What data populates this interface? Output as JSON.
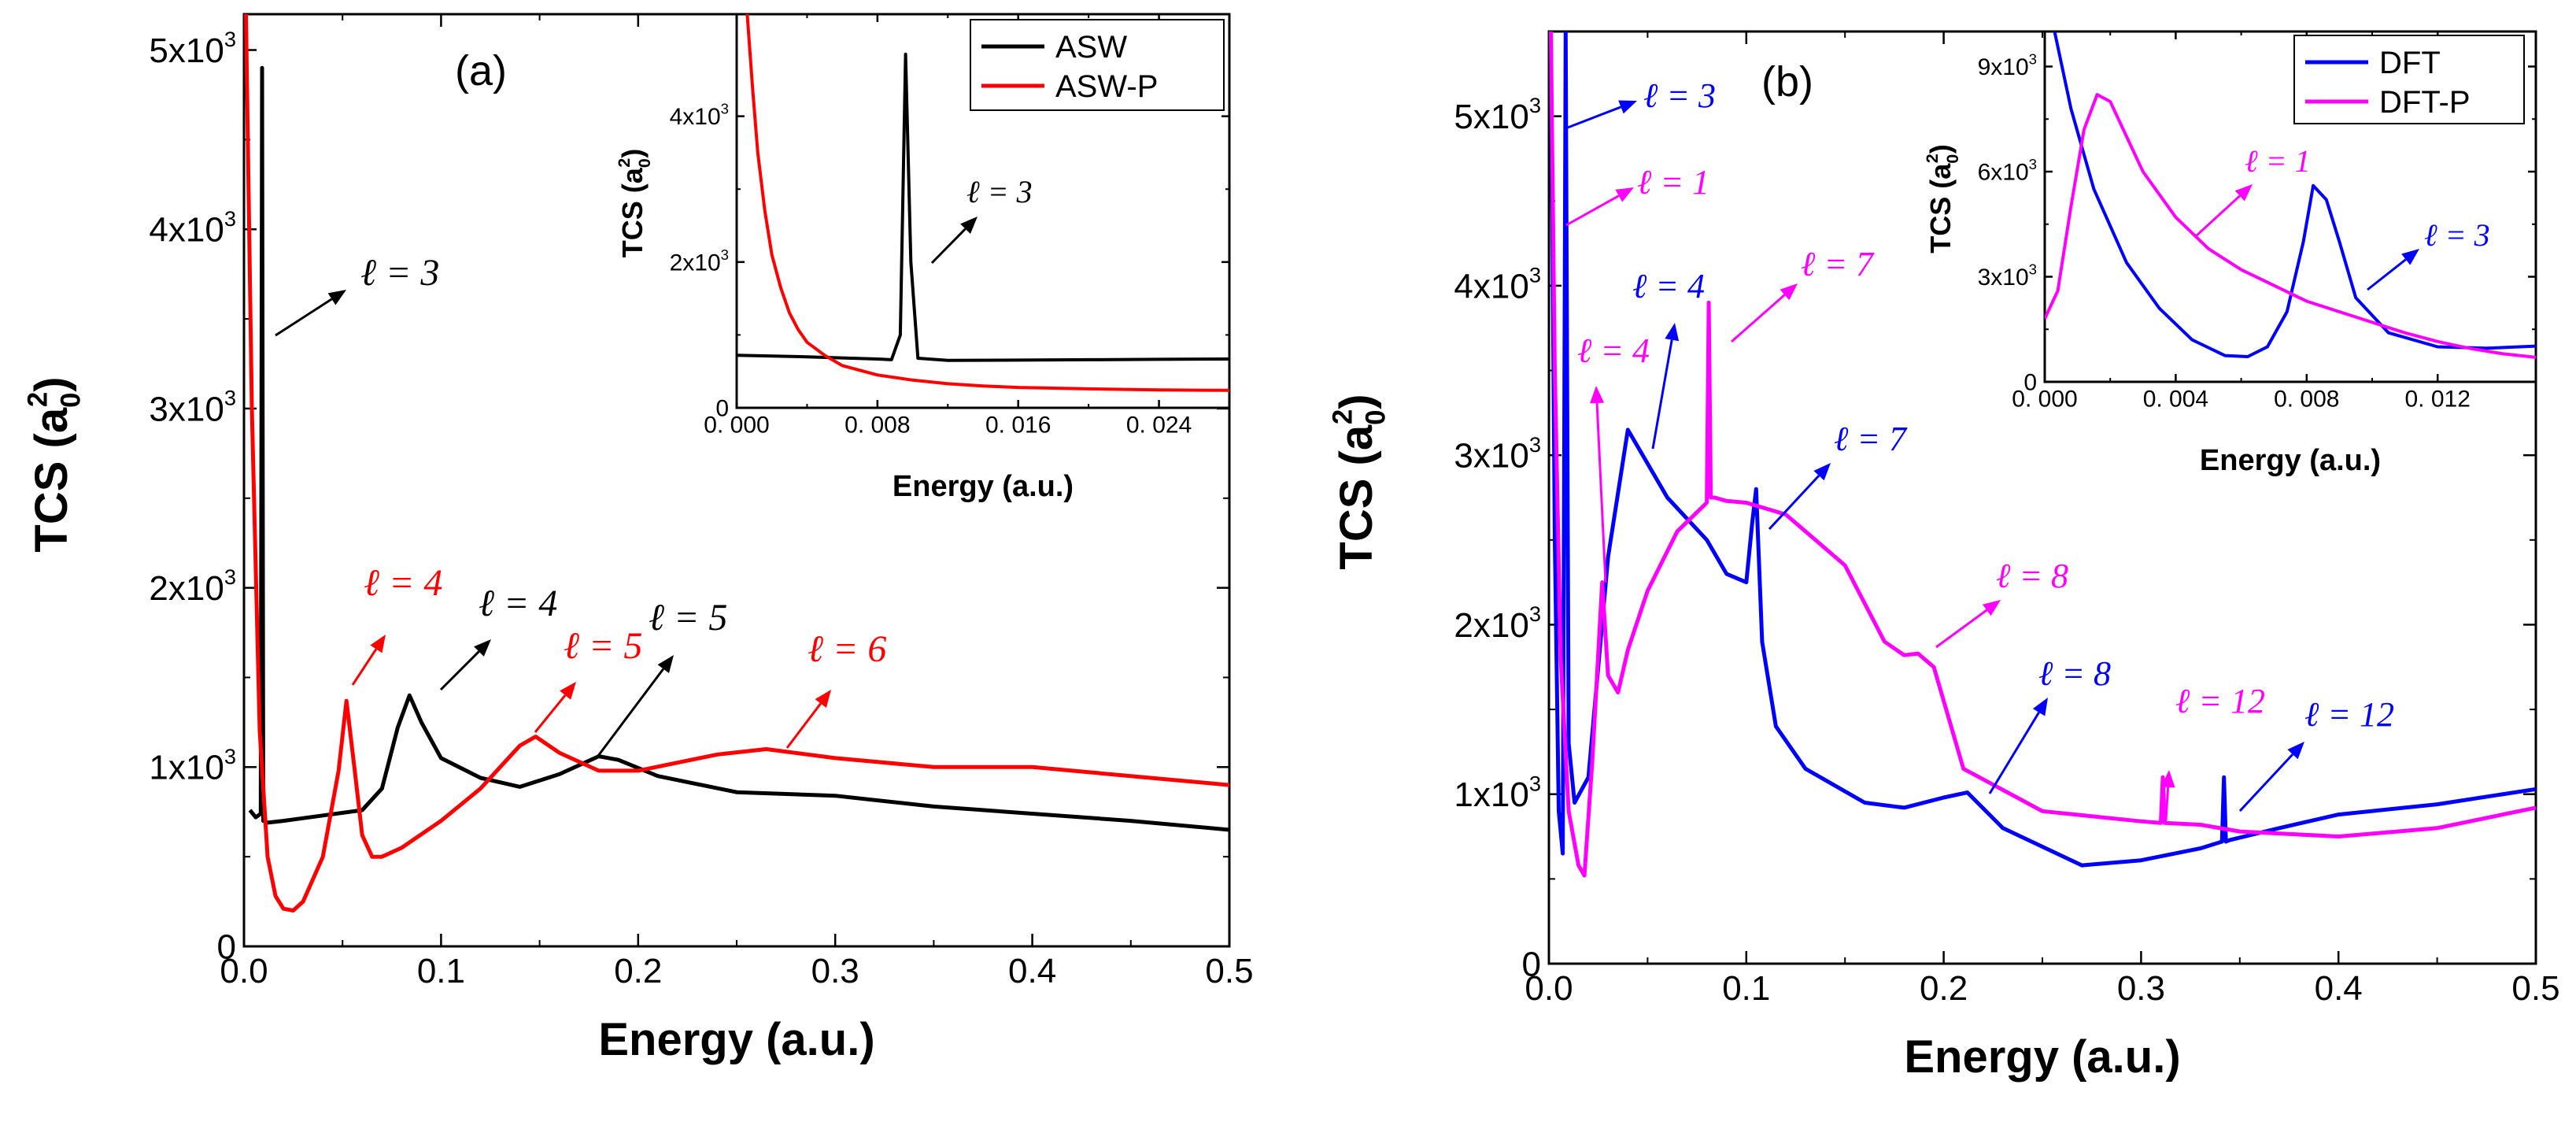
{
  "chart_data": [
    {
      "panel": "(a)",
      "type": "line",
      "xlabel": "Energy (a.u.)",
      "ylabel": "TCS (a",
      "ylabel_sub": "0",
      "ylabel_sup": "2",
      "ylabel_tail": ")",
      "xlim": [
        0,
        0.5
      ],
      "ylim": [
        0,
        5200
      ],
      "xticks": [
        0,
        0.1,
        0.2,
        0.3,
        0.4,
        0.5
      ],
      "xtick_labels": [
        "0.0",
        "0.1",
        "0.2",
        "0.3",
        "0.4",
        "0.5"
      ],
      "yticks": [
        0,
        1000,
        2000,
        3000,
        4000,
        5000
      ],
      "ytick_labels": [
        {
          "base": "0",
          "exp": ""
        },
        {
          "base": "1x10",
          "exp": "3"
        },
        {
          "base": "2x10",
          "exp": "3"
        },
        {
          "base": "3x10",
          "exp": "3"
        },
        {
          "base": "4x10",
          "exp": "3"
        },
        {
          "base": "5x10",
          "exp": "3"
        }
      ],
      "series": [
        {
          "name": "ASW",
          "color": "#000000",
          "x": [
            0.003,
            0.006,
            0.0085,
            0.0092,
            0.0098,
            0.012,
            0.02,
            0.04,
            0.06,
            0.07,
            0.078,
            0.084,
            0.09,
            0.1,
            0.12,
            0.14,
            0.16,
            0.18,
            0.19,
            0.21,
            0.25,
            0.3,
            0.35,
            0.4,
            0.45,
            0.5
          ],
          "y": [
            760,
            720,
            740,
            4900,
            700,
            690,
            700,
            730,
            760,
            880,
            1220,
            1400,
            1250,
            1050,
            940,
            890,
            960,
            1060,
            1040,
            950,
            860,
            840,
            780,
            740,
            700,
            650
          ]
        },
        {
          "name": "ASW-P",
          "color": "#ff0000",
          "x": [
            0.001,
            0.004,
            0.008,
            0.012,
            0.016,
            0.02,
            0.025,
            0.03,
            0.04,
            0.048,
            0.052,
            0.056,
            0.06,
            0.065,
            0.07,
            0.08,
            0.1,
            0.12,
            0.13,
            0.14,
            0.148,
            0.16,
            0.18,
            0.2,
            0.24,
            0.265,
            0.3,
            0.35,
            0.4,
            0.45,
            0.5
          ],
          "y": [
            5200,
            3000,
            1200,
            500,
            280,
            210,
            200,
            250,
            500,
            980,
            1370,
            1000,
            620,
            500,
            500,
            550,
            700,
            880,
            1000,
            1120,
            1170,
            1080,
            980,
            980,
            1070,
            1100,
            1050,
            1000,
            1000,
            950,
            900
          ]
        }
      ],
      "legend": [
        "ASW",
        "ASW-P"
      ],
      "annotations": [
        {
          "text": "ℓ = 3",
          "color": "#000000"
        },
        {
          "text": "ℓ = 4",
          "color": "#ff0000"
        },
        {
          "text": "ℓ = 4",
          "color": "#000000"
        },
        {
          "text": "ℓ = 5",
          "color": "#ff0000"
        },
        {
          "text": "ℓ = 5",
          "color": "#000000"
        },
        {
          "text": "ℓ = 6",
          "color": "#ff0000"
        }
      ],
      "inset": {
        "xlabel": "Energy (a.u.)",
        "ylabel": "TCS (a",
        "ylabel_sub": "0",
        "ylabel_sup": "2",
        "ylabel_tail": ")",
        "xlim": [
          0,
          0.028
        ],
        "ylim": [
          0,
          5400
        ],
        "xticks": [
          0,
          0.008,
          0.016,
          0.024
        ],
        "xtick_labels": [
          "0. 000",
          "0. 008",
          "0. 016",
          "0. 024"
        ],
        "yticks": [
          0,
          2000,
          4000
        ],
        "ytick_labels": [
          {
            "base": "0",
            "exp": ""
          },
          {
            "base": "2x10",
            "exp": "3"
          },
          {
            "base": "4x10",
            "exp": "3"
          }
        ],
        "series": [
          {
            "name": "ASW",
            "color": "#000000",
            "x": [
              0,
              0.004,
              0.008,
              0.0088,
              0.0093,
              0.0096,
              0.0099,
              0.0103,
              0.012,
              0.016,
              0.02,
              0.024,
              0.028
            ],
            "y": [
              720,
              700,
              670,
              660,
              1000,
              4850,
              2000,
              680,
              650,
              655,
              660,
              665,
              670
            ]
          },
          {
            "name": "ASW-P",
            "color": "#ff0000",
            "x": [
              0.0006,
              0.0009,
              0.0012,
              0.0016,
              0.002,
              0.0025,
              0.003,
              0.0035,
              0.004,
              0.005,
              0.006,
              0.008,
              0.01,
              0.012,
              0.014,
              0.016,
              0.02,
              0.024,
              0.028
            ],
            "y": [
              5400,
              4400,
              3500,
              2700,
              2100,
              1650,
              1300,
              1070,
              900,
              720,
              580,
              450,
              380,
              330,
              300,
              280,
              260,
              245,
              240
            ]
          }
        ],
        "annotations": [
          {
            "text": "ℓ = 3",
            "color": "#000000"
          }
        ]
      }
    },
    {
      "panel": "(b)",
      "type": "line",
      "xlabel": "Energy (a.u.)",
      "ylabel": "TCS (a",
      "ylabel_sub": "0",
      "ylabel_sup": "2",
      "ylabel_tail": ")",
      "xlim": [
        0,
        0.5
      ],
      "ylim": [
        0,
        5500
      ],
      "xticks": [
        0,
        0.1,
        0.2,
        0.3,
        0.4,
        0.5
      ],
      "xtick_labels": [
        "0.0",
        "0.1",
        "0.2",
        "0.3",
        "0.4",
        "0.5"
      ],
      "yticks": [
        0,
        1000,
        2000,
        3000,
        4000,
        5000
      ],
      "ytick_labels": [
        {
          "base": "0",
          "exp": ""
        },
        {
          "base": "1x10",
          "exp": "3"
        },
        {
          "base": "2x10",
          "exp": "3"
        },
        {
          "base": "3x10",
          "exp": "3"
        },
        {
          "base": "4x10",
          "exp": "3"
        },
        {
          "base": "5x10",
          "exp": "3"
        }
      ],
      "series": [
        {
          "name": "DFT",
          "color": "#0000ff",
          "x": [
            0.001,
            0.003,
            0.005,
            0.007,
            0.0085,
            0.01,
            0.013,
            0.02,
            0.03,
            0.04,
            0.045,
            0.06,
            0.08,
            0.09,
            0.1,
            0.103,
            0.105,
            0.108,
            0.115,
            0.13,
            0.16,
            0.18,
            0.2,
            0.212,
            0.23,
            0.27,
            0.3,
            0.33,
            0.341,
            0.342,
            0.343,
            0.345,
            0.37,
            0.4,
            0.45,
            0.5
          ],
          "y": [
            5500,
            2500,
            900,
            650,
            5500,
            1300,
            950,
            1100,
            2400,
            3150,
            3050,
            2750,
            2500,
            2300,
            2250,
            2600,
            2800,
            1900,
            1400,
            1150,
            950,
            920,
            980,
            1010,
            800,
            580,
            610,
            680,
            720,
            1100,
            720,
            730,
            800,
            880,
            940,
            1030
          ]
        },
        {
          "name": "DFT-P",
          "color": "#ff00ff",
          "x": [
            0.001,
            0.003,
            0.006,
            0.01,
            0.015,
            0.018,
            0.022,
            0.027,
            0.03,
            0.035,
            0.04,
            0.05,
            0.065,
            0.08,
            0.081,
            0.082,
            0.084,
            0.09,
            0.1,
            0.12,
            0.15,
            0.17,
            0.18,
            0.187,
            0.195,
            0.21,
            0.25,
            0.3,
            0.31,
            0.311,
            0.312,
            0.33,
            0.35,
            0.4,
            0.45,
            0.5
          ],
          "y": [
            5500,
            3500,
            1800,
            900,
            580,
            520,
            1200,
            2250,
            1700,
            1600,
            1850,
            2200,
            2550,
            2720,
            3900,
            2750,
            2750,
            2730,
            2720,
            2650,
            2350,
            1900,
            1820,
            1830,
            1750,
            1150,
            900,
            840,
            830,
            1100,
            830,
            820,
            780,
            750,
            800,
            920
          ]
        }
      ],
      "legend": [
        "DFT",
        "DFT-P"
      ],
      "annotations": [
        {
          "text": "ℓ = 3",
          "color": "#0000ff"
        },
        {
          "text": "ℓ = 1",
          "color": "#ff00ff"
        },
        {
          "text": "ℓ = 4",
          "color": "#0000ff"
        },
        {
          "text": "ℓ = 4",
          "color": "#ff00ff"
        },
        {
          "text": "ℓ = 7",
          "color": "#ff00ff"
        },
        {
          "text": "ℓ = 7",
          "color": "#0000ff"
        },
        {
          "text": "ℓ = 8",
          "color": "#ff00ff"
        },
        {
          "text": "ℓ = 8",
          "color": "#0000ff"
        },
        {
          "text": "ℓ = 12",
          "color": "#ff00ff"
        },
        {
          "text": "ℓ = 12",
          "color": "#0000ff"
        }
      ],
      "inset": {
        "xlabel": "Energy (a.u.)",
        "ylabel": "TCS (a",
        "ylabel_sub": "0",
        "ylabel_sup": "2",
        "ylabel_tail": ")",
        "xlim": [
          0,
          0.015
        ],
        "ylim": [
          0,
          10000
        ],
        "xticks": [
          0,
          0.004,
          0.008,
          0.012
        ],
        "xtick_labels": [
          "0. 000",
          "0. 004",
          "0. 008",
          "0. 012"
        ],
        "yticks": [
          0,
          3000,
          6000,
          9000
        ],
        "ytick_labels": [
          {
            "base": "0",
            "exp": ""
          },
          {
            "base": "3x10",
            "exp": "3"
          },
          {
            "base": "6x10",
            "exp": "3"
          },
          {
            "base": "9x10",
            "exp": "3"
          }
        ],
        "series": [
          {
            "name": "DFT",
            "color": "#0000ff",
            "x": [
              0.0003,
              0.0008,
              0.0015,
              0.0025,
              0.0035,
              0.0045,
              0.0055,
              0.0062,
              0.0068,
              0.0074,
              0.0079,
              0.0082,
              0.0086,
              0.009,
              0.0095,
              0.0105,
              0.012,
              0.0135,
              0.015
            ],
            "y": [
              10000,
              7800,
              5500,
              3400,
              2100,
              1200,
              750,
              720,
              1000,
              2000,
              4000,
              5600,
              5200,
              4000,
              2400,
              1400,
              1000,
              960,
              1020
            ]
          },
          {
            "name": "DFT-P",
            "color": "#ff00ff",
            "x": [
              0,
              0.0004,
              0.0008,
              0.0012,
              0.0016,
              0.002,
              0.0025,
              0.003,
              0.004,
              0.005,
              0.006,
              0.007,
              0.008,
              0.009,
              0.01,
              0.011,
              0.012,
              0.013,
              0.014,
              0.015
            ],
            "y": [
              1800,
              2600,
              5000,
              7200,
              8200,
              8000,
              7000,
              6000,
              4700,
              3800,
              3200,
              2750,
              2300,
              2000,
              1700,
              1400,
              1150,
              950,
              800,
              700
            ]
          }
        ],
        "annotations": [
          {
            "text": "ℓ = 1",
            "color": "#ff00ff"
          },
          {
            "text": "ℓ = 3",
            "color": "#0000ff"
          }
        ]
      }
    }
  ]
}
